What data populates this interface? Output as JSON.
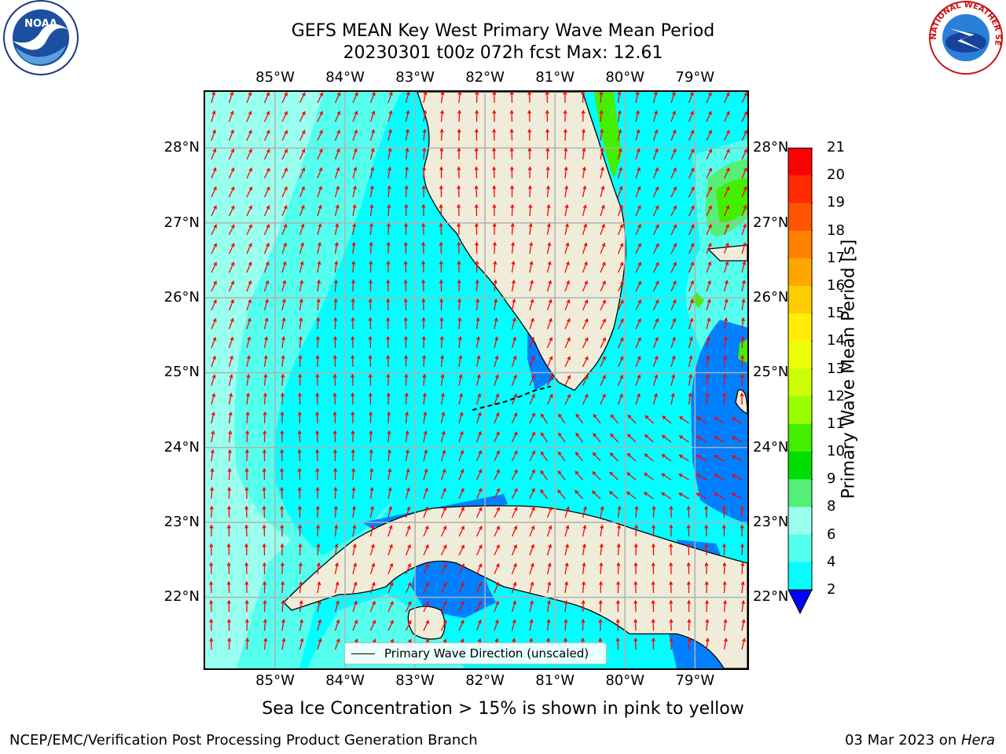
{
  "title": {
    "line1": "GEFS MEAN Key West Primary Wave Mean Period",
    "line2": "20230301 t00z 072h fcst   Max: 12.61"
  },
  "map": {
    "lon_labels": [
      "85°W",
      "84°W",
      "83°W",
      "82°W",
      "81°W",
      "80°W",
      "79°W"
    ],
    "lat_labels": [
      "28°N",
      "27°N",
      "26°N",
      "25°N",
      "24°N",
      "23°N",
      "22°N"
    ],
    "lon_range": [
      -86.0,
      -78.25
    ],
    "lat_range": [
      21.05,
      28.75
    ],
    "ocean_color": "#00ffff",
    "land_color": "#efedd9",
    "arrow_color": "#ff0000",
    "gridline_color": "#b0b0b0"
  },
  "legend": {
    "label": "Primary Wave Direction (unscaled)"
  },
  "colorbar": {
    "title": "Primary Wave Mean Period [s]",
    "ticks": [
      "21",
      "20",
      "19",
      "18",
      "17",
      "16",
      "15",
      "14",
      "13",
      "12",
      "11",
      "10",
      "9",
      "8",
      "6",
      "4",
      "2"
    ],
    "colors": [
      "#ff0000",
      "#ff2a00",
      "#ff5500",
      "#ff8000",
      "#ffa600",
      "#ffcc00",
      "#ffee00",
      "#eeff00",
      "#ccff00",
      "#99ff00",
      "#44ee00",
      "#00dd00",
      "#55ee77",
      "#99ffee",
      "#55ffee",
      "#00ffff",
      "#0080ff"
    ],
    "extend_color": "#0000ff"
  },
  "note": "Sea Ice Concentration > 15% is shown in pink to yellow",
  "footer": {
    "left": "NCEP/EMC/Verification Post Processing Product Generation Branch",
    "right_prefix": "03 Mar 2023 on ",
    "right_host": "Hera"
  },
  "logos": {
    "noaa_text": "NOAA",
    "nws_text": "NATIONAL WEATHER SERVICE"
  }
}
